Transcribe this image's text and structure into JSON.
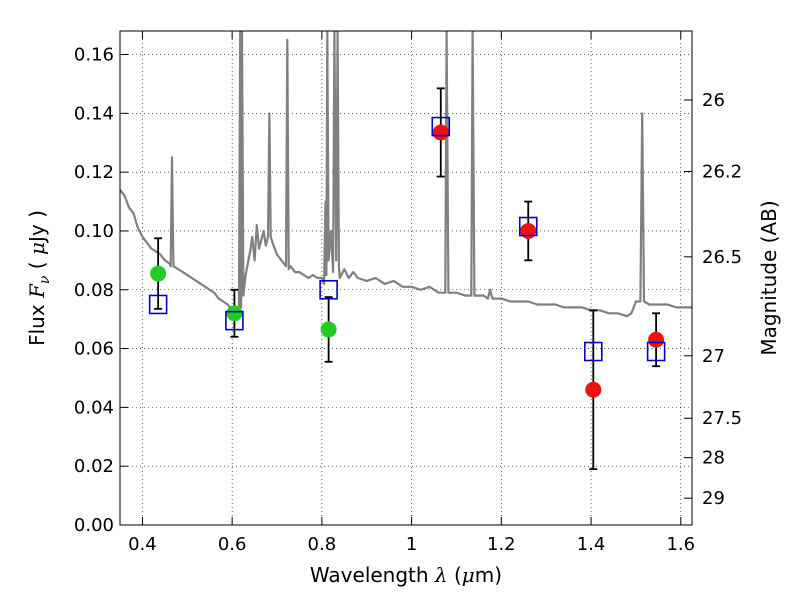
{
  "chart_data": {
    "type": "scatter",
    "title": "",
    "xlabel_parts": [
      "Wavelength  ",
      "λ",
      " (",
      "μ",
      "m)"
    ],
    "ylabel_parts": [
      "Flux  ",
      "F",
      "ν",
      "  ( ",
      "μ",
      "Jy )"
    ],
    "y2label": "Magnitude (AB)",
    "xlim": [
      0.35,
      1.625
    ],
    "ylim": [
      0.0,
      0.168
    ],
    "grid": true,
    "x_ticks": [
      0.4,
      0.6,
      0.8,
      1.0,
      1.2,
      1.4,
      1.6
    ],
    "x_tick_labels": [
      "0.4",
      "0.6",
      "0.8",
      "1",
      "1.2",
      "1.4",
      "1.6"
    ],
    "y_ticks": [
      0.0,
      0.02,
      0.04,
      0.06,
      0.08,
      0.1,
      0.12,
      0.14,
      0.16
    ],
    "y_tick_labels": [
      "0.00",
      "0.02",
      "0.04",
      "0.06",
      "0.08",
      "0.10",
      "0.12",
      "0.14",
      "0.16"
    ],
    "y2_ticks": [
      {
        "label": "26",
        "value": 26.0
      },
      {
        "label": "26.2",
        "value": 26.2
      },
      {
        "label": "26.5",
        "value": 26.5
      },
      {
        "label": "27",
        "value": 27.0
      },
      {
        "label": "27.5",
        "value": 27.5
      },
      {
        "label": "28",
        "value": 28.0
      },
      {
        "label": "29",
        "value": 29.0
      }
    ],
    "colors": {
      "spectrum": "#808080",
      "green": "#22cc22",
      "red": "#ee1111",
      "model": "#0000cc",
      "errorbar": "#000000"
    },
    "spectrum": [
      [
        0.35,
        0.114
      ],
      [
        0.36,
        0.112
      ],
      [
        0.37,
        0.108
      ],
      [
        0.38,
        0.106
      ],
      [
        0.39,
        0.101
      ],
      [
        0.4,
        0.098
      ],
      [
        0.41,
        0.096
      ],
      [
        0.42,
        0.094
      ],
      [
        0.43,
        0.093
      ],
      [
        0.44,
        0.092
      ],
      [
        0.45,
        0.09
      ],
      [
        0.46,
        0.089
      ],
      [
        0.463,
        0.088
      ],
      [
        0.466,
        0.125
      ],
      [
        0.469,
        0.088
      ],
      [
        0.48,
        0.087
      ],
      [
        0.49,
        0.086
      ],
      [
        0.5,
        0.085
      ],
      [
        0.51,
        0.084
      ],
      [
        0.52,
        0.083
      ],
      [
        0.53,
        0.082
      ],
      [
        0.54,
        0.081
      ],
      [
        0.55,
        0.08
      ],
      [
        0.56,
        0.079
      ],
      [
        0.57,
        0.077
      ],
      [
        0.58,
        0.076
      ],
      [
        0.59,
        0.075
      ],
      [
        0.6,
        0.073
      ],
      [
        0.61,
        0.072
      ],
      [
        0.615,
        0.071
      ],
      [
        0.618,
        0.168
      ],
      [
        0.62,
        0.074
      ],
      [
        0.622,
        0.168
      ],
      [
        0.625,
        0.078
      ],
      [
        0.63,
        0.085
      ],
      [
        0.64,
        0.093
      ],
      [
        0.645,
        0.098
      ],
      [
        0.65,
        0.09
      ],
      [
        0.655,
        0.102
      ],
      [
        0.66,
        0.094
      ],
      [
        0.67,
        0.1
      ],
      [
        0.675,
        0.095
      ],
      [
        0.68,
        0.098
      ],
      [
        0.683,
        0.14
      ],
      [
        0.686,
        0.098
      ],
      [
        0.69,
        0.096
      ],
      [
        0.7,
        0.092
      ],
      [
        0.71,
        0.09
      ],
      [
        0.72,
        0.088
      ],
      [
        0.723,
        0.165
      ],
      [
        0.726,
        0.087
      ],
      [
        0.73,
        0.088
      ],
      [
        0.74,
        0.086
      ],
      [
        0.75,
        0.086
      ],
      [
        0.76,
        0.085
      ],
      [
        0.77,
        0.084
      ],
      [
        0.78,
        0.085
      ],
      [
        0.79,
        0.084
      ],
      [
        0.8,
        0.084
      ],
      [
        0.805,
        0.082
      ],
      [
        0.808,
        0.11
      ],
      [
        0.81,
        0.085
      ],
      [
        0.812,
        0.168
      ],
      [
        0.815,
        0.09
      ],
      [
        0.82,
        0.1
      ],
      [
        0.825,
        0.086
      ],
      [
        0.828,
        0.168
      ],
      [
        0.832,
        0.09
      ],
      [
        0.835,
        0.168
      ],
      [
        0.838,
        0.088
      ],
      [
        0.84,
        0.084
      ],
      [
        0.85,
        0.087
      ],
      [
        0.86,
        0.084
      ],
      [
        0.87,
        0.086
      ],
      [
        0.88,
        0.084
      ],
      [
        0.9,
        0.083
      ],
      [
        0.92,
        0.084
      ],
      [
        0.94,
        0.082
      ],
      [
        0.96,
        0.083
      ],
      [
        0.98,
        0.081
      ],
      [
        1.0,
        0.081
      ],
      [
        1.02,
        0.08
      ],
      [
        1.04,
        0.081
      ],
      [
        1.06,
        0.079
      ],
      [
        1.075,
        0.079
      ],
      [
        1.078,
        0.168
      ],
      [
        1.082,
        0.079
      ],
      [
        1.09,
        0.079
      ],
      [
        1.1,
        0.079
      ],
      [
        1.12,
        0.078
      ],
      [
        1.133,
        0.078
      ],
      [
        1.136,
        0.168
      ],
      [
        1.14,
        0.078
      ],
      [
        1.16,
        0.078
      ],
      [
        1.17,
        0.077
      ],
      [
        1.175,
        0.08
      ],
      [
        1.18,
        0.077
      ],
      [
        1.2,
        0.077
      ],
      [
        1.22,
        0.076
      ],
      [
        1.24,
        0.076
      ],
      [
        1.26,
        0.076
      ],
      [
        1.28,
        0.075
      ],
      [
        1.3,
        0.075
      ],
      [
        1.32,
        0.075
      ],
      [
        1.34,
        0.074
      ],
      [
        1.36,
        0.074
      ],
      [
        1.38,
        0.074
      ],
      [
        1.4,
        0.073
      ],
      [
        1.42,
        0.073
      ],
      [
        1.44,
        0.072
      ],
      [
        1.46,
        0.072
      ],
      [
        1.48,
        0.071
      ],
      [
        1.49,
        0.072
      ],
      [
        1.5,
        0.076
      ],
      [
        1.51,
        0.076
      ],
      [
        1.514,
        0.14
      ],
      [
        1.518,
        0.076
      ],
      [
        1.53,
        0.075
      ],
      [
        1.55,
        0.075
      ],
      [
        1.57,
        0.075
      ],
      [
        1.59,
        0.074
      ],
      [
        1.61,
        0.074
      ],
      [
        1.625,
        0.074
      ]
    ],
    "series": [
      {
        "marker": "circle",
        "color_key": "green",
        "points": [
          {
            "x": 0.435,
            "y": 0.0855,
            "err": 0.012
          },
          {
            "x": 0.605,
            "y": 0.072,
            "err": 0.008
          },
          {
            "x": 0.815,
            "y": 0.0665,
            "err": 0.011
          }
        ]
      },
      {
        "marker": "circle",
        "color_key": "red",
        "points": [
          {
            "x": 1.065,
            "y": 0.1335,
            "err": 0.015
          },
          {
            "x": 1.26,
            "y": 0.1,
            "err": 0.01
          },
          {
            "x": 1.405,
            "y": 0.046,
            "err": 0.027
          },
          {
            "x": 1.545,
            "y": 0.063,
            "err": 0.009
          }
        ]
      },
      {
        "marker": "square-open",
        "color_key": "model",
        "points": [
          {
            "x": 0.435,
            "y": 0.075
          },
          {
            "x": 0.605,
            "y": 0.0695
          },
          {
            "x": 0.815,
            "y": 0.08
          },
          {
            "x": 1.065,
            "y": 0.1355
          },
          {
            "x": 1.26,
            "y": 0.1015
          },
          {
            "x": 1.405,
            "y": 0.059
          },
          {
            "x": 1.545,
            "y": 0.059
          }
        ]
      }
    ]
  }
}
